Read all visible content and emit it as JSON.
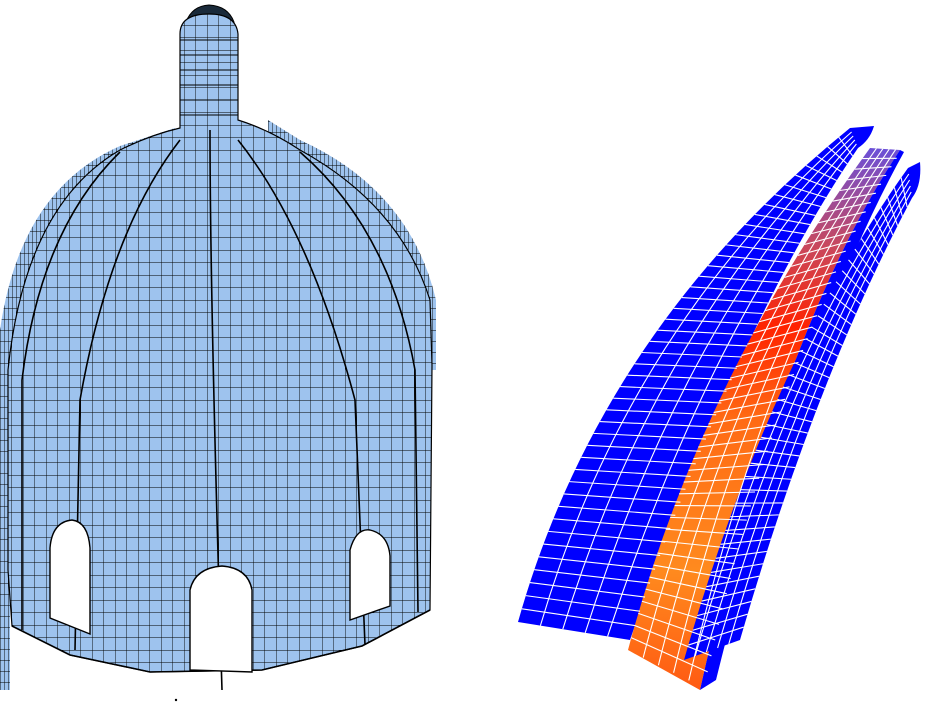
{
  "figure": {
    "panels": [
      {
        "id": "dome-mesh",
        "kind": "finite-element mesh",
        "sides": 8,
        "openings": 3,
        "colors": {
          "fill": "#9ec3ee",
          "line": "#000000"
        }
      },
      {
        "id": "rib-stress-plot",
        "kind": "contour plot of curved ribs",
        "ribs": 3,
        "colors": {
          "low": "#0000ff",
          "mid": "#ff8a1e",
          "high": "#ff1a00",
          "line": "#ffffff"
        }
      }
    ]
  }
}
